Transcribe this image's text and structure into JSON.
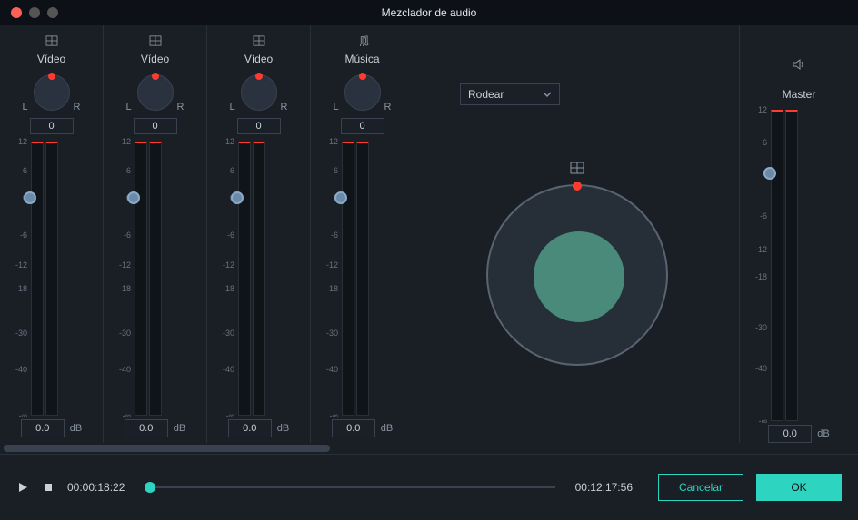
{
  "window": {
    "title": "Mezclador de audio"
  },
  "channels": [
    {
      "type": "video",
      "label": "Vídeo",
      "pan_L": "L",
      "pan_R": "R",
      "pan_value": "0",
      "db_value": "0.0",
      "db_unit": "dB",
      "fader_pos": 20.5
    },
    {
      "type": "video",
      "label": "Vídeo",
      "pan_L": "L",
      "pan_R": "R",
      "pan_value": "0",
      "db_value": "0.0",
      "db_unit": "dB",
      "fader_pos": 20.5
    },
    {
      "type": "video",
      "label": "Vídeo",
      "pan_L": "L",
      "pan_R": "R",
      "pan_value": "0",
      "db_value": "0.0",
      "db_unit": "dB",
      "fader_pos": 20.5
    },
    {
      "type": "music",
      "label": "Música",
      "pan_L": "L",
      "pan_R": "R",
      "pan_value": "0",
      "db_value": "0.0",
      "db_unit": "dB",
      "fader_pos": 20.5
    }
  ],
  "scale_marks": [
    {
      "label": "12",
      "pct": 0
    },
    {
      "label": "6",
      "pct": 10.5
    },
    {
      "label": "0",
      "pct": 20.5
    },
    {
      "label": "-6",
      "pct": 34
    },
    {
      "label": "-12",
      "pct": 45
    },
    {
      "label": "-18",
      "pct": 53.5
    },
    {
      "label": "-30",
      "pct": 70
    },
    {
      "label": "-40",
      "pct": 83
    },
    {
      "label": "-∞",
      "pct": 100
    }
  ],
  "surround": {
    "dropdown": "Rodear"
  },
  "master": {
    "label": "Master",
    "db_value": "0.0",
    "db_unit": "dB",
    "fader_pos": 20.5,
    "scale_marks": [
      {
        "label": "12",
        "pct": 0
      },
      {
        "label": "6",
        "pct": 10.5
      },
      {
        "label": "0",
        "pct": 20.5
      },
      {
        "label": "-6",
        "pct": 34
      },
      {
        "label": "-12",
        "pct": 45
      },
      {
        "label": "-18",
        "pct": 53.5
      },
      {
        "label": "-30",
        "pct": 70
      },
      {
        "label": "-40",
        "pct": 83
      },
      {
        "label": "-∞",
        "pct": 100
      }
    ]
  },
  "scrollbar": {
    "thumb_width_pct": 38
  },
  "transport": {
    "current": "00:00:18:22",
    "duration": "00:12:17:56",
    "playhead_pct": 0
  },
  "buttons": {
    "cancel": "Cancelar",
    "ok": "OK"
  },
  "colors": {
    "bg": "#1a1f26",
    "panel_border": "#2a3038",
    "accent": "#2dd4bf",
    "knob_indicator": "#ff3b30",
    "ring_inner": "#4a8a7a"
  }
}
